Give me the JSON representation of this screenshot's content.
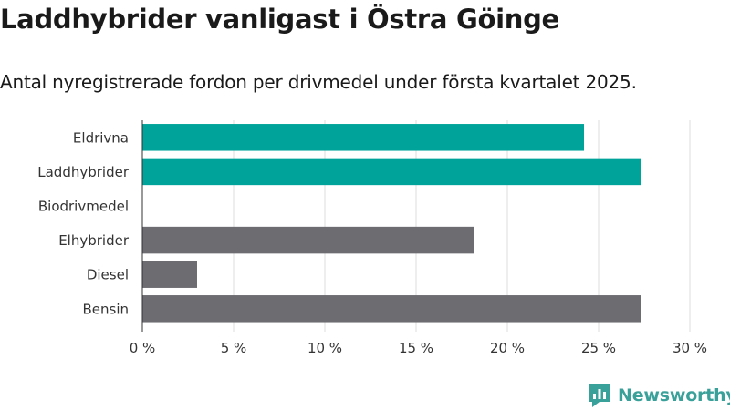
{
  "title": "Laddhybrider vanligast i Östra Göinge",
  "subtitle": "Antal nyregistrerade fordon per drivmedel under första kvartalet 2025.",
  "brand": {
    "name": "Newsworthy",
    "icon": "bar-chart-speech-bubble-icon",
    "color": "#3aa09a"
  },
  "colors": {
    "highlight": "#00a39a",
    "default": "#6d6c71",
    "grid": "#dcdcdc",
    "axis": "#333333"
  },
  "chart_data": {
    "type": "bar",
    "orientation": "horizontal",
    "categories": [
      "Eldrivna",
      "Laddhybrider",
      "Biodrivmedel",
      "Elhybrider",
      "Diesel",
      "Bensin"
    ],
    "values": [
      24.2,
      27.3,
      0,
      18.2,
      3.0,
      27.3
    ],
    "highlighted": [
      true,
      true,
      false,
      false,
      false,
      false
    ],
    "x_unit": "%",
    "xlim": [
      0,
      30
    ],
    "xticks": [
      0,
      5,
      10,
      15,
      20,
      25,
      30
    ],
    "xtick_labels": [
      "0 %",
      "5 %",
      "10 %",
      "15 %",
      "20 %",
      "25 %",
      "30 %"
    ],
    "grid": true
  }
}
